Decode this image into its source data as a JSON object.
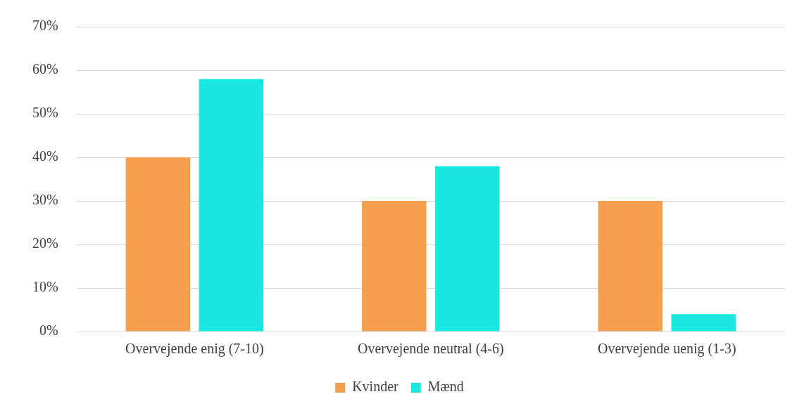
{
  "chart_data": {
    "type": "bar",
    "categories": [
      "Overvejende enig (7-10)",
      "Overvejende neutral (4-6)",
      "Overvejende uenig (1-3)"
    ],
    "series": [
      {
        "name": "Kvinder",
        "color": "#f79f4f",
        "values": [
          40,
          30,
          30
        ]
      },
      {
        "name": "Mænd",
        "color": "#1ae8e0",
        "values": [
          58,
          38,
          4
        ]
      }
    ],
    "ylim": [
      0,
      70
    ],
    "yticks": [
      {
        "value": 0,
        "label": "0%"
      },
      {
        "value": 10,
        "label": "10%"
      },
      {
        "value": 20,
        "label": "20%"
      },
      {
        "value": 30,
        "label": "30%"
      },
      {
        "value": 40,
        "label": "40%"
      },
      {
        "value": 50,
        "label": "50%"
      },
      {
        "value": 60,
        "label": "60%"
      },
      {
        "value": 70,
        "label": "70%"
      }
    ],
    "grid": "y",
    "legend": "bottom"
  }
}
